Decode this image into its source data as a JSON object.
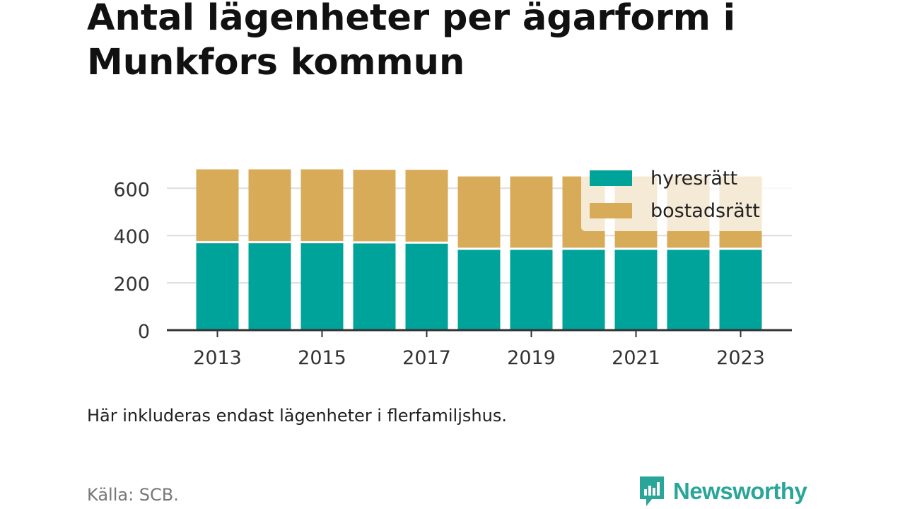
{
  "title": "Antal lägenheter per ägarform i Munkfors kommun",
  "note": "Här inkluderas endast lägenheter i flerfamiljshus.",
  "source": "Källa: SCB.",
  "brand": {
    "name": "Newsworthy",
    "icon": "newsworthy-logo-icon"
  },
  "colors": {
    "hyresratt": "#00a39a",
    "bostadsratt": "#d8ab58",
    "grid": "#dddddd",
    "axis": "#333333",
    "legend_bg": "#f8eedc"
  },
  "chart_data": {
    "type": "bar",
    "stacked": true,
    "categories": [
      "2013",
      "2014",
      "2015",
      "2016",
      "2017",
      "2018",
      "2019",
      "2020",
      "2021",
      "2022",
      "2023"
    ],
    "x_tick_labels": [
      "2013",
      "2015",
      "2017",
      "2019",
      "2021",
      "2023"
    ],
    "y_ticks": [
      0,
      200,
      400,
      600
    ],
    "ylim": [
      0,
      690
    ],
    "grid": true,
    "legend_position": "top-right",
    "series": [
      {
        "name": "hyresrätt",
        "color": "#00a39a",
        "values": [
          372,
          372,
          372,
          371,
          370,
          344,
          344,
          344,
          344,
          344,
          344
        ]
      },
      {
        "name": "bostadsrätt",
        "color": "#d8ab58",
        "values": [
          308,
          308,
          308,
          307,
          308,
          306,
          306,
          306,
          306,
          306,
          306
        ]
      }
    ]
  }
}
